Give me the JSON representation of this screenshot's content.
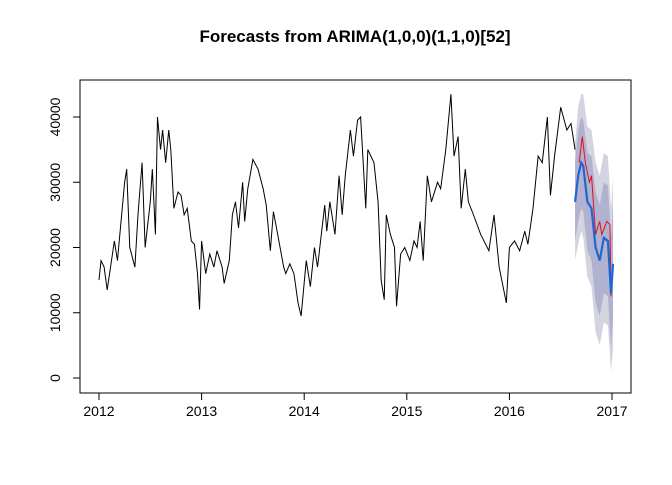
{
  "chart_data": {
    "type": "line",
    "title": "Forecasts from ARIMA(1,0,0)(1,1,0)[52]",
    "xlim": [
      2011.815,
      2017.185
    ],
    "ylim": [
      -2300,
      45670
    ],
    "xticks": [
      2012,
      2013,
      2014,
      2015,
      2016,
      2017
    ],
    "yticks": [
      0,
      10000,
      20000,
      30000,
      40000
    ],
    "series": [
      {
        "color": "#000000",
        "x": [
          2012.0,
          2012.02,
          2012.05,
          2012.08,
          2012.15,
          2012.18,
          2012.25,
          2012.27,
          2012.3,
          2012.35,
          2012.38,
          2012.42,
          2012.45,
          2012.5,
          2012.52,
          2012.55,
          2012.57,
          2012.6,
          2012.62,
          2012.65,
          2012.68,
          2012.7,
          2012.73,
          2012.77,
          2012.8,
          2012.83,
          2012.86,
          2012.9,
          2012.93,
          2012.96,
          2012.98,
          2013.0,
          2013.04,
          2013.08,
          2013.12,
          2013.15,
          2013.2,
          2013.22,
          2013.27,
          2013.3,
          2013.33,
          2013.36,
          2013.4,
          2013.42,
          2013.45,
          2013.5,
          2013.55,
          2013.6,
          2013.63,
          2013.67,
          2013.7,
          2013.73,
          2013.8,
          2013.82,
          2013.86,
          2013.9,
          2013.94,
          2013.97,
          2014.02,
          2014.06,
          2014.1,
          2014.13,
          2014.2,
          2014.22,
          2014.25,
          2014.3,
          2014.34,
          2014.37,
          2014.4,
          2014.45,
          2014.48,
          2014.52,
          2014.55,
          2014.6,
          2014.62,
          2014.68,
          2014.72,
          2014.75,
          2014.78,
          2014.8,
          2014.84,
          2014.88,
          2014.9,
          2014.94,
          2014.98,
          2015.03,
          2015.07,
          2015.1,
          2015.13,
          2015.16,
          2015.2,
          2015.24,
          2015.3,
          2015.33,
          2015.38,
          2015.43,
          2015.46,
          2015.5,
          2015.53,
          2015.57,
          2015.6,
          2015.65,
          2015.72,
          2015.8,
          2015.85,
          2015.9,
          2015.97,
          2016.0,
          2016.05,
          2016.1,
          2016.15,
          2016.18,
          2016.23,
          2016.28,
          2016.32,
          2016.37,
          2016.4,
          2016.44,
          2016.5,
          2016.56,
          2016.6,
          2016.64
        ],
        "values": [
          15000,
          18000,
          17000,
          13500,
          21000,
          18000,
          30000,
          32000,
          20000,
          17000,
          25000,
          33000,
          20000,
          27000,
          32000,
          22000,
          40000,
          35000,
          38000,
          33000,
          38000,
          35000,
          26000,
          28500,
          28000,
          25000,
          26000,
          21000,
          20500,
          16000,
          10500,
          21000,
          16000,
          19000,
          17000,
          19500,
          17000,
          14500,
          18000,
          25000,
          27000,
          23000,
          30000,
          24000,
          29000,
          33500,
          32000,
          29000,
          26500,
          19500,
          25500,
          23000,
          17000,
          16000,
          17500,
          16000,
          11500,
          9500,
          18000,
          14000,
          20000,
          17000,
          26500,
          22500,
          27000,
          22000,
          31000,
          25000,
          31000,
          38000,
          34000,
          39500,
          40000,
          26000,
          35000,
          33000,
          27000,
          15000,
          12000,
          25000,
          22000,
          20000,
          11000,
          19000,
          20000,
          18000,
          21000,
          20000,
          24000,
          18000,
          31000,
          27000,
          30000,
          29000,
          35000,
          43500,
          34000,
          37000,
          26000,
          32000,
          27000,
          25000,
          22000,
          19500,
          25000,
          17000,
          11500,
          20000,
          21000,
          19500,
          22500,
          20500,
          26000,
          34000,
          33000,
          40000,
          28000,
          34000,
          41500,
          38000,
          39000,
          35000
        ]
      },
      {
        "color": "#e0101e",
        "x": [
          2016.68,
          2016.71,
          2016.74,
          2016.78,
          2016.8,
          2016.84,
          2016.88,
          2016.9,
          2016.95,
          2016.98,
          2016.99,
          2017.01
        ],
        "values": [
          33000,
          37000,
          33000,
          30000,
          31000,
          22000,
          24000,
          22000,
          24000,
          23500,
          12500,
          17000
        ]
      },
      {
        "color": "#2166d0",
        "x": [
          2016.64,
          2016.67,
          2016.7,
          2016.72,
          2016.76,
          2016.8,
          2016.84,
          2016.88,
          2016.92,
          2016.96,
          2016.99,
          2017.01
        ],
        "values": [
          27000,
          31000,
          33000,
          32500,
          27000,
          26000,
          20000,
          18000,
          21500,
          21000,
          13000,
          17500
        ]
      }
    ],
    "bands": [
      {
        "color": "#d4d4e0",
        "lower": [
          18000,
          20500,
          22500,
          21500,
          15500,
          14000,
          7000,
          5000,
          8500,
          8000,
          1000,
          4500
        ],
        "upper": [
          36000,
          41500,
          43500,
          43500,
          38500,
          38000,
          33000,
          31000,
          34500,
          34000,
          26000,
          30500
        ]
      },
      {
        "color": "#b1b1d0",
        "lower": [
          21000,
          24000,
          26000,
          25500,
          19500,
          18000,
          11500,
          9500,
          13000,
          12500,
          4500,
          9000
        ],
        "upper": [
          33000,
          38000,
          40000,
          39500,
          34500,
          34000,
          28500,
          26500,
          30000,
          29500,
          21500,
          26000
        ]
      }
    ]
  }
}
